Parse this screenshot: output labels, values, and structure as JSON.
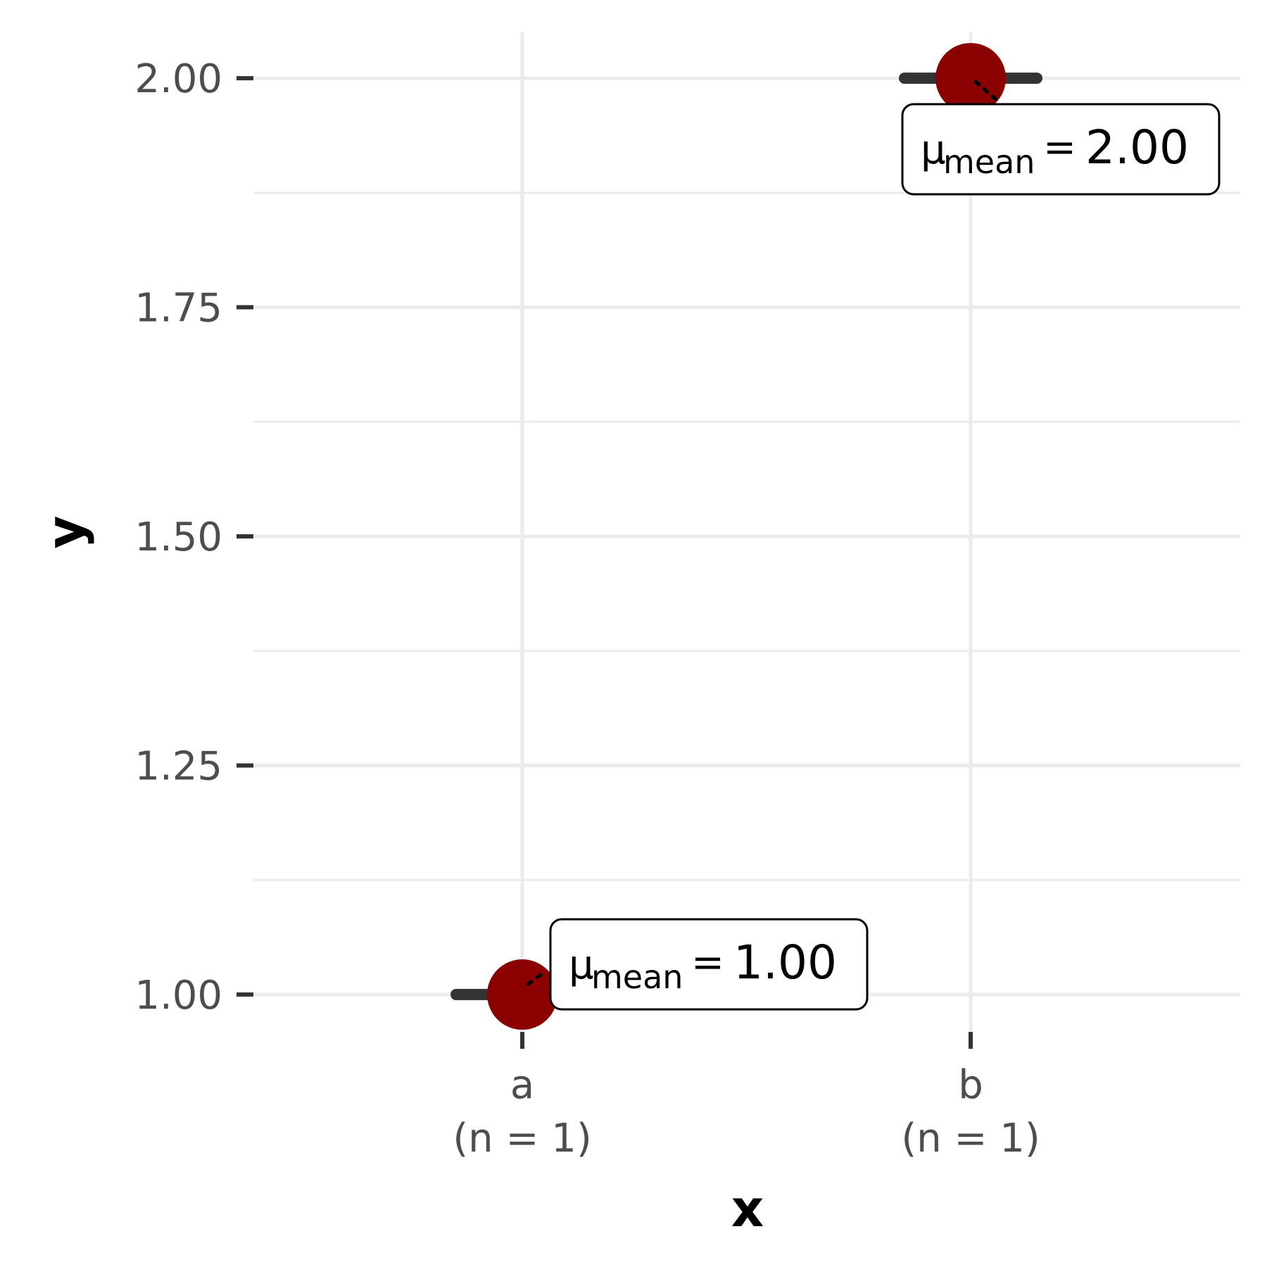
{
  "chart_data": {
    "type": "scatter",
    "xlabel": "x",
    "ylabel": "y",
    "categories": [
      "a",
      "b"
    ],
    "category_counts": [
      "(n = 1)",
      "(n = 1)"
    ],
    "values": [
      1.0,
      2.0
    ],
    "ylim": [
      0.95,
      2.05
    ],
    "yticks": [
      "1.00",
      "1.25",
      "1.50",
      "1.75",
      "2.00"
    ],
    "ytick_values": [
      1.0,
      1.25,
      1.5,
      1.75,
      2.0
    ],
    "grid": true,
    "annotations": [
      {
        "category": "a",
        "symbol": "μ",
        "subscript": "mean",
        "equals": "=",
        "value": "1.00"
      },
      {
        "category": "b",
        "symbol": "μ",
        "subscript": "mean",
        "equals": "=",
        "value": "2.00"
      }
    ],
    "point_color": "#8b0000",
    "grid_color": "#ebebeb",
    "axis_tick_color": "#333333"
  }
}
